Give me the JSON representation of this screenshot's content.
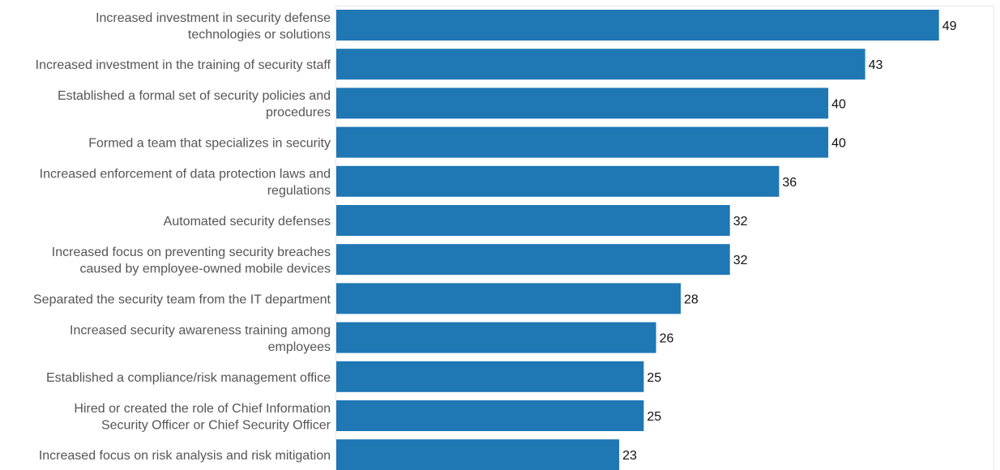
{
  "chart_data": {
    "type": "bar",
    "orientation": "horizontal",
    "categories": [
      [
        "Increased investment in security defense",
        "technologies or solutions"
      ],
      [
        "Increased investment in the training of security staff"
      ],
      [
        "Established a formal set of security policies and",
        "procedures"
      ],
      [
        "Formed a team that specializes in security"
      ],
      [
        "Increased enforcement of data protection laws and",
        "regulations"
      ],
      [
        "Automated security defenses"
      ],
      [
        "Increased focus on preventing security breaches",
        "caused by employee-owned mobile devices"
      ],
      [
        "Separated the security team from the IT department"
      ],
      [
        "Increased security awareness training among",
        "employees"
      ],
      [
        "Established a compliance/risk management office"
      ],
      [
        "Hired or created the role of Chief Information",
        "Security Officer or Chief Security Officer"
      ],
      [
        "Increased focus on risk analysis and risk mitigation"
      ]
    ],
    "values": [
      49,
      43,
      40,
      40,
      36,
      32,
      32,
      28,
      26,
      25,
      25,
      23
    ],
    "bar_color": "#1f77b4",
    "xlim": [
      0,
      53.5
    ],
    "grid": false,
    "legend": "none"
  }
}
